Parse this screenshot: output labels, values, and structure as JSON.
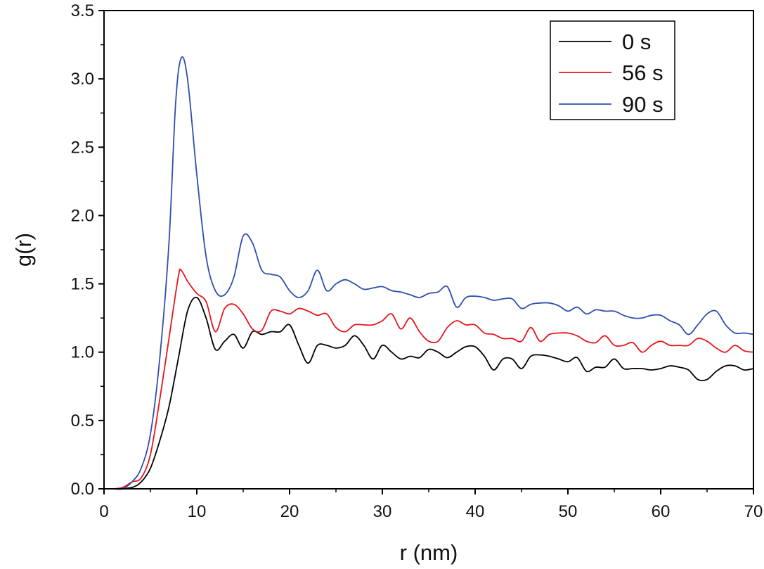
{
  "chart_data": {
    "type": "line",
    "title": "",
    "xlabel": "r (nm)",
    "ylabel": "g(r)",
    "xlim": [
      0,
      70
    ],
    "ylim": [
      0,
      3.5
    ],
    "xticks": [
      0,
      10,
      20,
      30,
      40,
      50,
      60,
      70
    ],
    "yticks": [
      "0.0",
      "0.5",
      "1.0",
      "1.5",
      "2.0",
      "2.5",
      "3.0",
      "3.5"
    ],
    "grid": false,
    "legend_position": "top-right",
    "series": [
      {
        "name": "0 s",
        "color": "#000000",
        "x": [
          1.5,
          3,
          4,
          5,
          6,
          7,
          8,
          9,
          10,
          11,
          12,
          13,
          14,
          15,
          16,
          17,
          18,
          19,
          20,
          21,
          22,
          23,
          24,
          25,
          26,
          27,
          28,
          29,
          30,
          31,
          32,
          33,
          34,
          35,
          36,
          37,
          38,
          39,
          40,
          41,
          42,
          43,
          44,
          45,
          46,
          47,
          48,
          49,
          50,
          51,
          52,
          53,
          54,
          55,
          56,
          57,
          58,
          59,
          60,
          61,
          62,
          63,
          64,
          65,
          66,
          67,
          68,
          69,
          70
        ],
        "y": [
          0,
          0.01,
          0.05,
          0.15,
          0.35,
          0.6,
          0.95,
          1.3,
          1.4,
          1.25,
          1.02,
          1.08,
          1.13,
          1.03,
          1.15,
          1.13,
          1.15,
          1.15,
          1.2,
          1.05,
          0.92,
          1.05,
          1.05,
          1.03,
          1.05,
          1.12,
          1.05,
          0.95,
          1.05,
          1.0,
          0.95,
          0.97,
          0.96,
          1.02,
          1.0,
          0.96,
          1.0,
          1.04,
          1.04,
          0.97,
          0.87,
          0.95,
          0.95,
          0.88,
          0.97,
          0.98,
          0.97,
          0.95,
          0.93,
          0.96,
          0.86,
          0.89,
          0.89,
          0.95,
          0.88,
          0.88,
          0.88,
          0.87,
          0.88,
          0.9,
          0.89,
          0.87,
          0.8,
          0.8,
          0.86,
          0.9,
          0.9,
          0.87,
          0.88
        ]
      },
      {
        "name": "56 s",
        "color": "#e8141c",
        "x": [
          1,
          2,
          3,
          4,
          5,
          6,
          7,
          8,
          8.3,
          9,
          10,
          11,
          12,
          13,
          14,
          15,
          16,
          17,
          18,
          19,
          20,
          21,
          22,
          23,
          24,
          25,
          26,
          27,
          28,
          29,
          30,
          31,
          32,
          33,
          34,
          35,
          36,
          37,
          38,
          39,
          40,
          41,
          42,
          43,
          44,
          45,
          46,
          47,
          48,
          49,
          50,
          51,
          52,
          53,
          54,
          55,
          56,
          57,
          58,
          59,
          60,
          61,
          62,
          63,
          64,
          65,
          66,
          67,
          68,
          69,
          70
        ],
        "y": [
          0,
          0.01,
          0.05,
          0.08,
          0.25,
          0.65,
          1.1,
          1.55,
          1.6,
          1.52,
          1.43,
          1.37,
          1.15,
          1.32,
          1.35,
          1.28,
          1.17,
          1.16,
          1.3,
          1.3,
          1.28,
          1.32,
          1.3,
          1.27,
          1.28,
          1.18,
          1.15,
          1.2,
          1.2,
          1.2,
          1.23,
          1.28,
          1.17,
          1.25,
          1.15,
          1.08,
          1.08,
          1.18,
          1.23,
          1.2,
          1.2,
          1.14,
          1.13,
          1.1,
          1.1,
          1.08,
          1.18,
          1.08,
          1.13,
          1.14,
          1.14,
          1.12,
          1.08,
          1.07,
          1.12,
          1.05,
          1.05,
          1.07,
          1.0,
          1.05,
          1.08,
          1.05,
          1.05,
          1.05,
          1.1,
          1.08,
          1.03,
          1.0,
          1.05,
          1.01,
          1.0
        ]
      },
      {
        "name": "90 s",
        "color": "#2e4eae",
        "x": [
          1,
          2,
          3,
          4,
          5,
          6,
          7,
          7.7,
          8.3,
          9,
          10,
          11,
          12,
          13,
          14,
          15,
          16,
          17,
          18,
          19,
          20,
          21,
          22,
          23,
          24,
          25,
          26,
          27,
          28,
          29,
          30,
          31,
          32,
          33,
          34,
          35,
          36,
          37,
          38,
          39,
          40,
          41,
          42,
          43,
          44,
          45,
          46,
          47,
          48,
          49,
          50,
          51,
          52,
          53,
          54,
          55,
          56,
          57,
          58,
          59,
          60,
          61,
          62,
          63,
          64,
          65,
          66,
          67,
          68,
          69,
          70
        ],
        "y": [
          0,
          0,
          0.05,
          0.15,
          0.4,
          0.95,
          1.8,
          2.8,
          3.15,
          3.0,
          2.3,
          1.7,
          1.45,
          1.42,
          1.55,
          1.85,
          1.8,
          1.6,
          1.57,
          1.55,
          1.45,
          1.4,
          1.45,
          1.6,
          1.45,
          1.5,
          1.53,
          1.5,
          1.46,
          1.47,
          1.48,
          1.45,
          1.44,
          1.42,
          1.4,
          1.43,
          1.44,
          1.48,
          1.33,
          1.4,
          1.41,
          1.4,
          1.38,
          1.39,
          1.39,
          1.32,
          1.35,
          1.36,
          1.36,
          1.34,
          1.3,
          1.33,
          1.28,
          1.31,
          1.3,
          1.3,
          1.27,
          1.25,
          1.25,
          1.27,
          1.27,
          1.23,
          1.2,
          1.13,
          1.2,
          1.28,
          1.3,
          1.2,
          1.14,
          1.14,
          1.13
        ]
      }
    ]
  }
}
